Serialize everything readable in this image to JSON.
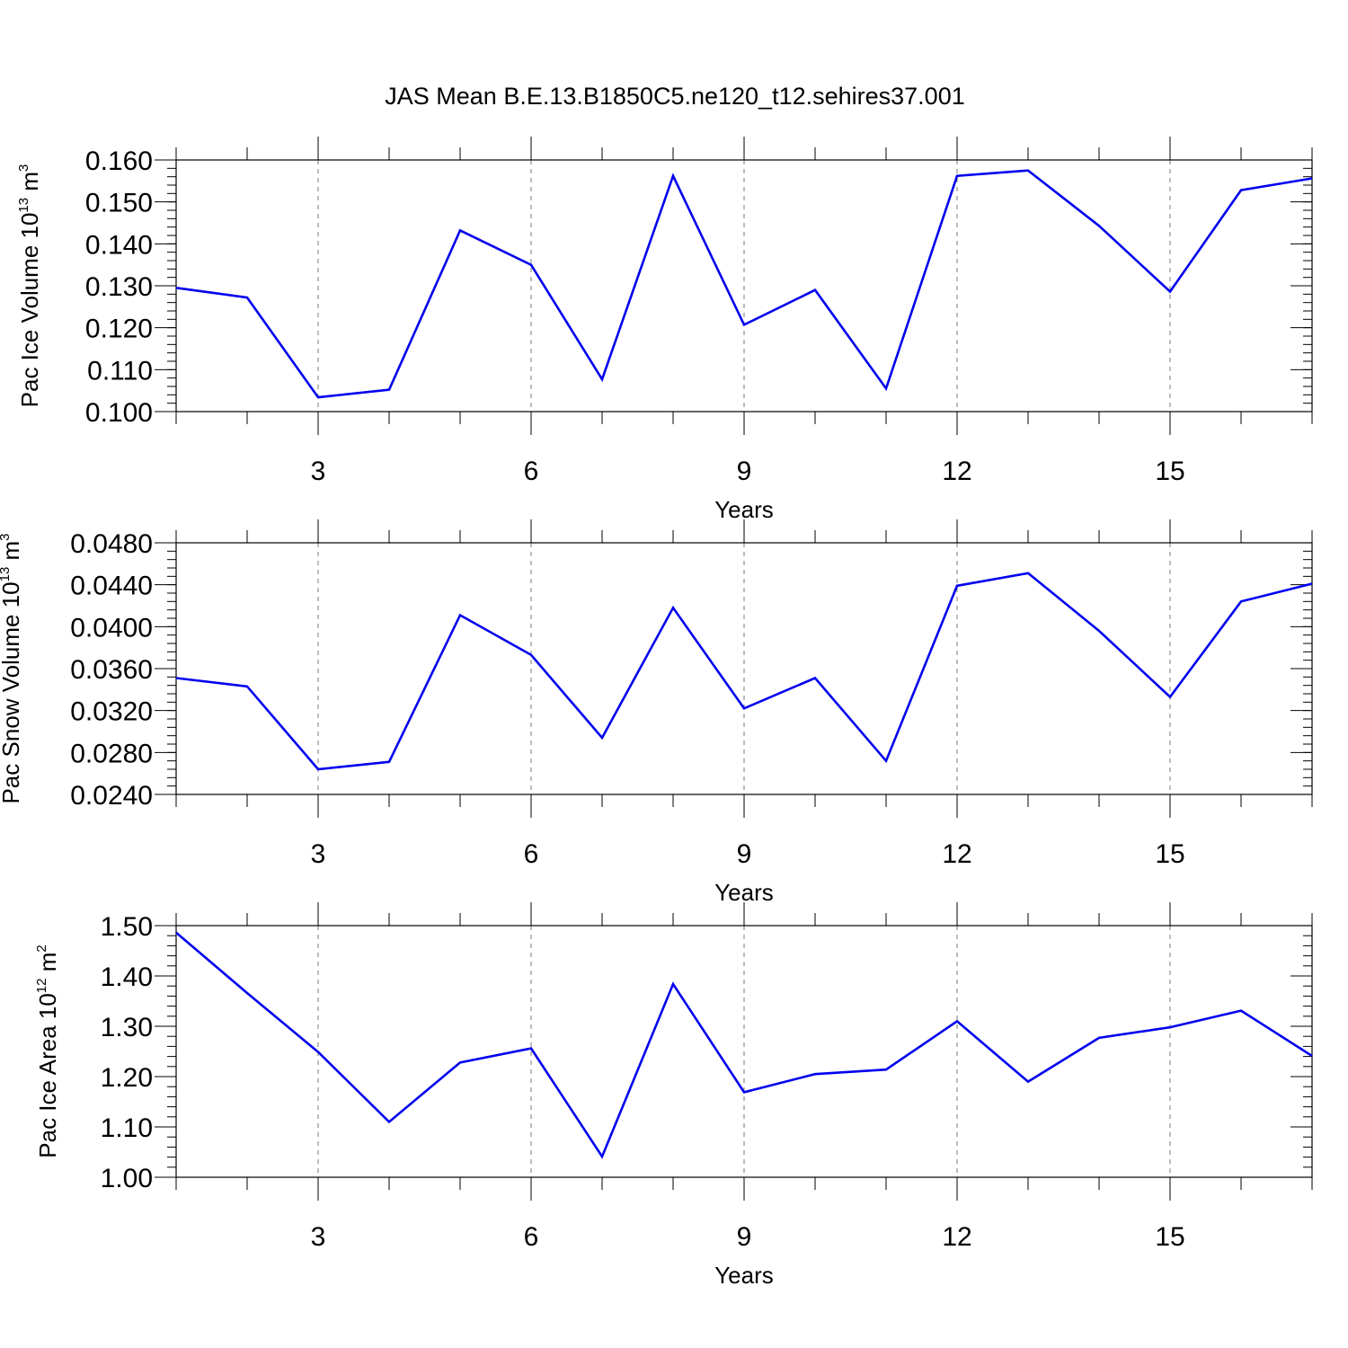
{
  "chart_data": {
    "title": "JAS Mean B.E.13.B1850C5.ne120_t12.sehires37.001",
    "line_color": "#0000ee",
    "x": [
      1,
      2,
      3,
      4,
      5,
      6,
      7,
      8,
      9,
      10,
      11,
      12,
      13,
      14,
      15,
      16,
      17
    ],
    "xlim": [
      1,
      17
    ],
    "xticks": [
      "3",
      "6",
      "9",
      "12",
      "15"
    ],
    "xtick_values": [
      3,
      6,
      9,
      12,
      15
    ],
    "panels": [
      {
        "type": "line",
        "name": "ice-volume",
        "ylabel": {
          "base": "Pac Ice Volume 10",
          "exp": "13",
          "unit": " m",
          "unit_exp": "3"
        },
        "xlabel": "Years",
        "ylim": [
          0.1,
          0.16
        ],
        "yticks": [
          "0.100",
          "0.110",
          "0.120",
          "0.130",
          "0.140",
          "0.150",
          "0.160"
        ],
        "ytick_values": [
          0.1,
          0.11,
          0.12,
          0.13,
          0.14,
          0.15,
          0.16
        ],
        "minor_step": 0.002,
        "series": [
          {
            "name": "Pac Ice Volume",
            "values": [
              0.1295,
              0.1272,
              0.1034,
              0.1052,
              0.1432,
              0.135,
              0.1077,
              0.1562,
              0.1207,
              0.129,
              0.1055,
              0.1562,
              0.1575,
              0.1443,
              0.1286,
              0.1528,
              0.1556
            ]
          }
        ]
      },
      {
        "type": "line",
        "name": "snow-volume",
        "ylabel": {
          "base": "Pac Snow Volume 10",
          "exp": "13",
          "unit": " m",
          "unit_exp": "3"
        },
        "xlabel": "Years",
        "ylim": [
          0.024,
          0.048
        ],
        "yticks": [
          "0.0240",
          "0.0280",
          "0.0320",
          "0.0360",
          "0.0400",
          "0.0440",
          "0.0480"
        ],
        "ytick_values": [
          0.024,
          0.028,
          0.032,
          0.036,
          0.04,
          0.044,
          0.048
        ],
        "minor_step": 0.0008,
        "series": [
          {
            "name": "Pac Snow Volume",
            "values": [
              0.0351,
              0.0343,
              0.0264,
              0.0271,
              0.0411,
              0.0373,
              0.0294,
              0.0418,
              0.0322,
              0.0351,
              0.0272,
              0.0439,
              0.0451,
              0.0396,
              0.0333,
              0.0424,
              0.0441
            ]
          }
        ]
      },
      {
        "type": "line",
        "name": "ice-area",
        "ylabel": {
          "base": "Pac Ice Area 10",
          "exp": "12",
          "unit": " m",
          "unit_exp": "2"
        },
        "xlabel": "Years",
        "ylim": [
          1.0,
          1.5
        ],
        "yticks": [
          "1.00",
          "1.10",
          "1.20",
          "1.30",
          "1.40",
          "1.50"
        ],
        "ytick_values": [
          1.0,
          1.1,
          1.2,
          1.3,
          1.4,
          1.5
        ],
        "minor_step": 0.02,
        "series": [
          {
            "name": "Pac Ice Area",
            "values": [
              1.486,
              1.366,
              1.249,
              1.11,
              1.228,
              1.256,
              1.041,
              1.384,
              1.169,
              1.205,
              1.214,
              1.31,
              1.19,
              1.277,
              1.298,
              1.331,
              1.241
            ]
          }
        ]
      }
    ]
  }
}
